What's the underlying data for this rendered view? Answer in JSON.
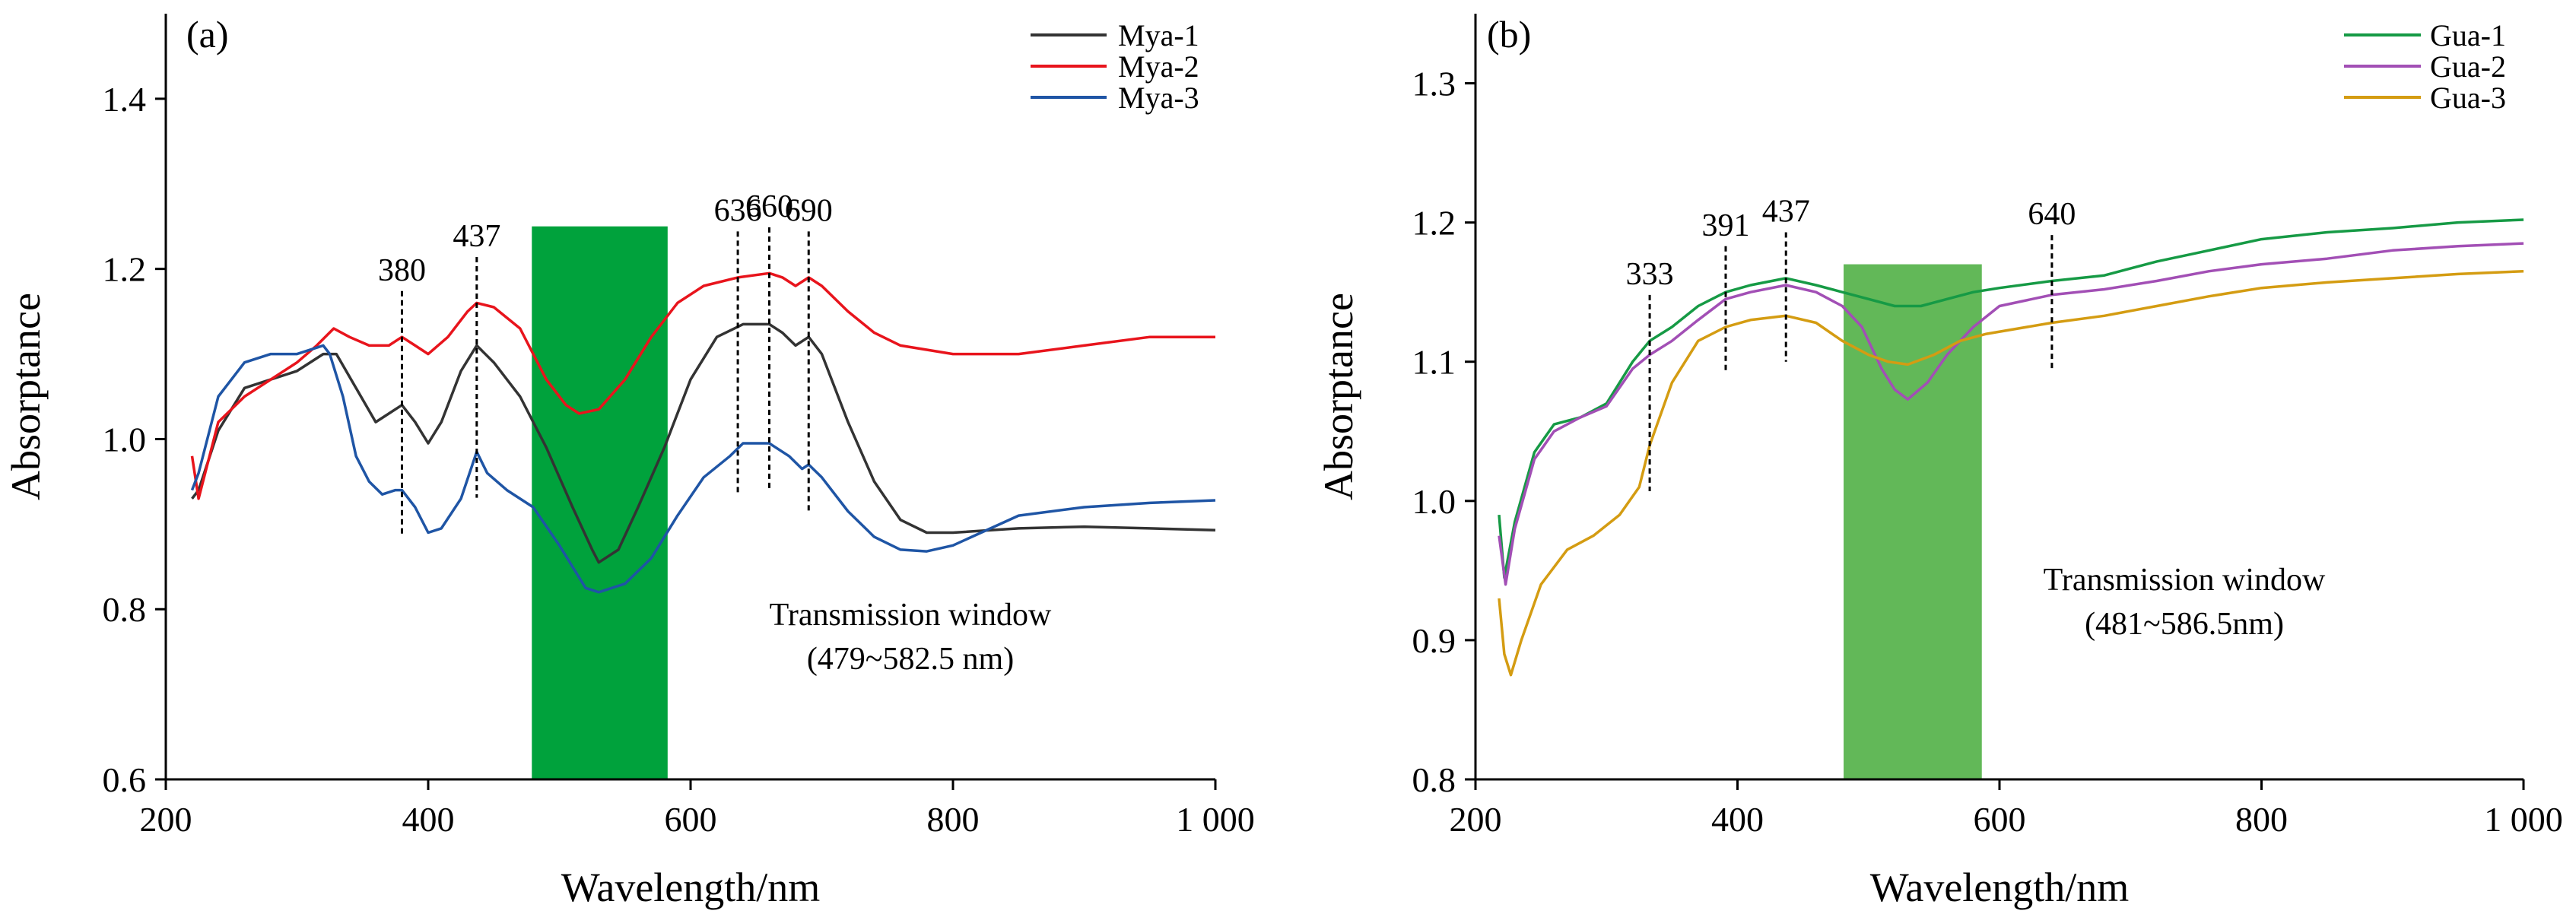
{
  "chart_data": [
    {
      "type": "line",
      "panel_label": "(a)",
      "xlabel": "Wavelength/nm",
      "ylabel": "Absorptance",
      "xlim": [
        200,
        1000
      ],
      "ylim": [
        0.6,
        1.5
      ],
      "x_ticks": [
        200,
        400,
        600,
        800,
        1000
      ],
      "x_tick_labels": [
        "200",
        "400",
        "600",
        "800",
        "1 000"
      ],
      "y_ticks": [
        0.6,
        0.8,
        1.0,
        1.2,
        1.4
      ],
      "y_tick_labels": [
        "0.6",
        "0.8",
        "1.0",
        "1.2",
        "1.4"
      ],
      "grid": false,
      "legend_position": "top-right",
      "series": [
        {
          "name": "Mya-1",
          "color": "#333333",
          "points": [
            [
              220,
              0.93
            ],
            [
              225,
              0.94
            ],
            [
              240,
              1.01
            ],
            [
              260,
              1.06
            ],
            [
              280,
              1.07
            ],
            [
              300,
              1.08
            ],
            [
              320,
              1.1
            ],
            [
              330,
              1.1
            ],
            [
              345,
              1.06
            ],
            [
              360,
              1.02
            ],
            [
              370,
              1.03
            ],
            [
              380,
              1.04
            ],
            [
              390,
              1.02
            ],
            [
              400,
              0.995
            ],
            [
              410,
              1.02
            ],
            [
              425,
              1.08
            ],
            [
              437,
              1.11
            ],
            [
              450,
              1.09
            ],
            [
              470,
              1.05
            ],
            [
              490,
              0.99
            ],
            [
              510,
              0.92
            ],
            [
              525,
              0.87
            ],
            [
              530,
              0.855
            ],
            [
              545,
              0.87
            ],
            [
              560,
              0.92
            ],
            [
              580,
              0.99
            ],
            [
              600,
              1.07
            ],
            [
              620,
              1.12
            ],
            [
              640,
              1.135
            ],
            [
              660,
              1.135
            ],
            [
              670,
              1.125
            ],
            [
              680,
              1.11
            ],
            [
              690,
              1.12
            ],
            [
              700,
              1.1
            ],
            [
              720,
              1.02
            ],
            [
              740,
              0.95
            ],
            [
              760,
              0.905
            ],
            [
              780,
              0.89
            ],
            [
              800,
              0.89
            ],
            [
              850,
              0.895
            ],
            [
              900,
              0.897
            ],
            [
              950,
              0.895
            ],
            [
              1000,
              0.893
            ]
          ]
        },
        {
          "name": "Mya-2",
          "color": "#e8141c",
          "points": [
            [
              220,
              0.98
            ],
            [
              225,
              0.93
            ],
            [
              240,
              1.02
            ],
            [
              260,
              1.05
            ],
            [
              280,
              1.07
            ],
            [
              300,
              1.09
            ],
            [
              315,
              1.11
            ],
            [
              328,
              1.13
            ],
            [
              340,
              1.12
            ],
            [
              355,
              1.11
            ],
            [
              370,
              1.11
            ],
            [
              380,
              1.12
            ],
            [
              390,
              1.11
            ],
            [
              400,
              1.1
            ],
            [
              415,
              1.12
            ],
            [
              430,
              1.15
            ],
            [
              437,
              1.16
            ],
            [
              450,
              1.155
            ],
            [
              470,
              1.13
            ],
            [
              490,
              1.07
            ],
            [
              505,
              1.04
            ],
            [
              515,
              1.03
            ],
            [
              530,
              1.035
            ],
            [
              550,
              1.07
            ],
            [
              570,
              1.12
            ],
            [
              590,
              1.16
            ],
            [
              610,
              1.18
            ],
            [
              636,
              1.19
            ],
            [
              660,
              1.195
            ],
            [
              670,
              1.19
            ],
            [
              680,
              1.18
            ],
            [
              690,
              1.19
            ],
            [
              700,
              1.18
            ],
            [
              720,
              1.15
            ],
            [
              740,
              1.125
            ],
            [
              760,
              1.11
            ],
            [
              800,
              1.1
            ],
            [
              850,
              1.1
            ],
            [
              900,
              1.11
            ],
            [
              950,
              1.12
            ],
            [
              1000,
              1.12
            ]
          ]
        },
        {
          "name": "Mya-3",
          "color": "#1f55a5",
          "points": [
            [
              220,
              0.94
            ],
            [
              225,
              0.96
            ],
            [
              240,
              1.05
            ],
            [
              260,
              1.09
            ],
            [
              280,
              1.1
            ],
            [
              300,
              1.1
            ],
            [
              320,
              1.11
            ],
            [
              325,
              1.1
            ],
            [
              335,
              1.05
            ],
            [
              345,
              0.98
            ],
            [
              355,
              0.95
            ],
            [
              365,
              0.935
            ],
            [
              375,
              0.94
            ],
            [
              380,
              0.94
            ],
            [
              390,
              0.92
            ],
            [
              400,
              0.89
            ],
            [
              410,
              0.895
            ],
            [
              425,
              0.93
            ],
            [
              437,
              0.985
            ],
            [
              445,
              0.96
            ],
            [
              460,
              0.94
            ],
            [
              480,
              0.92
            ],
            [
              500,
              0.875
            ],
            [
              520,
              0.825
            ],
            [
              530,
              0.82
            ],
            [
              550,
              0.83
            ],
            [
              570,
              0.86
            ],
            [
              590,
              0.91
            ],
            [
              610,
              0.955
            ],
            [
              630,
              0.98
            ],
            [
              640,
              0.995
            ],
            [
              660,
              0.995
            ],
            [
              675,
              0.98
            ],
            [
              685,
              0.965
            ],
            [
              690,
              0.97
            ],
            [
              700,
              0.955
            ],
            [
              720,
              0.915
            ],
            [
              740,
              0.885
            ],
            [
              760,
              0.87
            ],
            [
              780,
              0.868
            ],
            [
              800,
              0.875
            ],
            [
              850,
              0.91
            ],
            [
              900,
              0.92
            ],
            [
              950,
              0.925
            ],
            [
              1000,
              0.928
            ]
          ]
        }
      ],
      "peak_markers": [
        {
          "x": 380,
          "label": "380"
        },
        {
          "x": 437,
          "label": "437"
        },
        {
          "x": 636,
          "label": "636"
        },
        {
          "x": 660,
          "label": "660"
        },
        {
          "x": 690,
          "label": "690"
        }
      ],
      "shaded_band": {
        "x": [
          479,
          582.5
        ],
        "y_top": 1.25,
        "color": "#00a23c"
      },
      "annotation": [
        "Transmission window",
        "(479~582.5 nm)"
      ]
    },
    {
      "type": "line",
      "panel_label": "(b)",
      "xlabel": "Wavelength/nm",
      "ylabel": "Absorptance",
      "xlim": [
        200,
        1000
      ],
      "ylim": [
        0.8,
        1.35
      ],
      "x_ticks": [
        200,
        400,
        600,
        800,
        1000
      ],
      "x_tick_labels": [
        "200",
        "400",
        "600",
        "800",
        "1 000"
      ],
      "y_ticks": [
        0.8,
        0.9,
        1.0,
        1.1,
        1.2,
        1.3
      ],
      "y_tick_labels": [
        "0.8",
        "0.9",
        "1.0",
        "1.1",
        "1.2",
        "1.3"
      ],
      "grid": false,
      "legend_position": "top-right",
      "series": [
        {
          "name": "Gua-1",
          "color": "#169a45",
          "points": [
            [
              218,
              0.99
            ],
            [
              222,
              0.945
            ],
            [
              230,
              0.985
            ],
            [
              245,
              1.035
            ],
            [
              260,
              1.055
            ],
            [
              280,
              1.06
            ],
            [
              300,
              1.07
            ],
            [
              320,
              1.1
            ],
            [
              333,
              1.115
            ],
            [
              350,
              1.125
            ],
            [
              370,
              1.14
            ],
            [
              391,
              1.15
            ],
            [
              410,
              1.155
            ],
            [
              437,
              1.16
            ],
            [
              460,
              1.155
            ],
            [
              480,
              1.15
            ],
            [
              500,
              1.145
            ],
            [
              520,
              1.14
            ],
            [
              540,
              1.14
            ],
            [
              560,
              1.145
            ],
            [
              580,
              1.15
            ],
            [
              600,
              1.153
            ],
            [
              640,
              1.158
            ],
            [
              680,
              1.162
            ],
            [
              720,
              1.172
            ],
            [
              760,
              1.18
            ],
            [
              800,
              1.188
            ],
            [
              850,
              1.193
            ],
            [
              900,
              1.196
            ],
            [
              950,
              1.2
            ],
            [
              1000,
              1.202
            ]
          ]
        },
        {
          "name": "Gua-2",
          "color": "#a24fb5",
          "points": [
            [
              218,
              0.975
            ],
            [
              223,
              0.94
            ],
            [
              230,
              0.98
            ],
            [
              245,
              1.03
            ],
            [
              260,
              1.05
            ],
            [
              280,
              1.06
            ],
            [
              300,
              1.068
            ],
            [
              320,
              1.095
            ],
            [
              333,
              1.105
            ],
            [
              350,
              1.115
            ],
            [
              370,
              1.13
            ],
            [
              391,
              1.145
            ],
            [
              410,
              1.15
            ],
            [
              437,
              1.155
            ],
            [
              460,
              1.15
            ],
            [
              480,
              1.14
            ],
            [
              495,
              1.125
            ],
            [
              510,
              1.095
            ],
            [
              520,
              1.08
            ],
            [
              530,
              1.073
            ],
            [
              545,
              1.085
            ],
            [
              560,
              1.105
            ],
            [
              580,
              1.125
            ],
            [
              600,
              1.14
            ],
            [
              640,
              1.148
            ],
            [
              680,
              1.152
            ],
            [
              720,
              1.158
            ],
            [
              760,
              1.165
            ],
            [
              800,
              1.17
            ],
            [
              850,
              1.174
            ],
            [
              900,
              1.18
            ],
            [
              950,
              1.183
            ],
            [
              1000,
              1.185
            ]
          ]
        },
        {
          "name": "Gua-3",
          "color": "#d49c12",
          "points": [
            [
              218,
              0.93
            ],
            [
              222,
              0.89
            ],
            [
              227,
              0.875
            ],
            [
              235,
              0.9
            ],
            [
              250,
              0.94
            ],
            [
              270,
              0.965
            ],
            [
              290,
              0.975
            ],
            [
              310,
              0.99
            ],
            [
              325,
              1.01
            ],
            [
              333,
              1.04
            ],
            [
              350,
              1.085
            ],
            [
              370,
              1.115
            ],
            [
              391,
              1.125
            ],
            [
              410,
              1.13
            ],
            [
              437,
              1.133
            ],
            [
              460,
              1.128
            ],
            [
              480,
              1.115
            ],
            [
              500,
              1.105
            ],
            [
              515,
              1.1
            ],
            [
              530,
              1.098
            ],
            [
              550,
              1.105
            ],
            [
              570,
              1.115
            ],
            [
              590,
              1.12
            ],
            [
              640,
              1.128
            ],
            [
              680,
              1.133
            ],
            [
              720,
              1.14
            ],
            [
              760,
              1.147
            ],
            [
              800,
              1.153
            ],
            [
              850,
              1.157
            ],
            [
              900,
              1.16
            ],
            [
              950,
              1.163
            ],
            [
              1000,
              1.165
            ]
          ]
        }
      ],
      "peak_markers": [
        {
          "x": 333,
          "label": "333"
        },
        {
          "x": 391,
          "label": "391"
        },
        {
          "x": 437,
          "label": "437"
        },
        {
          "x": 640,
          "label": "640"
        }
      ],
      "shaded_band": {
        "x": [
          481,
          586.5
        ],
        "y_top": 1.17,
        "color": "#62b858"
      },
      "annotation": [
        "Transmission window",
        "(481~586.5nm)"
      ]
    }
  ]
}
